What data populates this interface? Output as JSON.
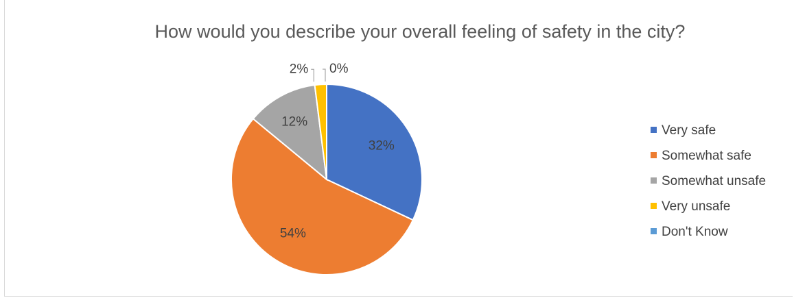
{
  "chart_data": {
    "type": "pie",
    "title": "How would you describe your overall feeling of safety in the city?",
    "categories": [
      "Very safe",
      "Somewhat safe",
      "Somewhat unsafe",
      "Very unsafe",
      "Don't Know"
    ],
    "values": [
      32,
      54,
      12,
      2,
      0
    ],
    "labels": [
      "32%",
      "54%",
      "12%",
      "2%",
      "0%"
    ],
    "colors": [
      "#4472c4",
      "#ed7d31",
      "#a5a5a5",
      "#ffc000",
      "#5b9bd5"
    ],
    "legend_position": "right"
  }
}
